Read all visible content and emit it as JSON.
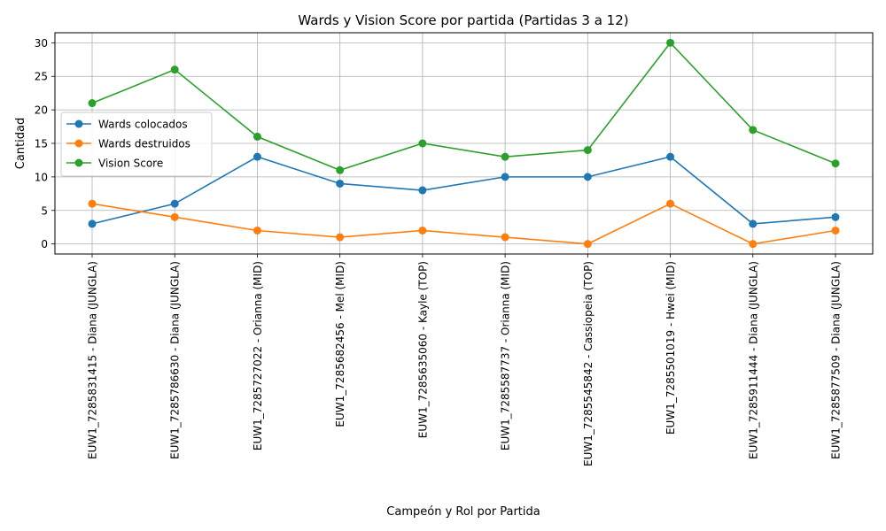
{
  "chart_data": {
    "type": "line",
    "title": "Wards y Vision Score por partida (Partidas 3 a 12)",
    "xlabel": "Campeón y Rol por Partida",
    "ylabel": "Cantidad",
    "categories": [
      "EUW1_7285831415 - Diana (JUNGLA)",
      "EUW1_7285786630 - Diana (JUNGLA)",
      "EUW1_7285727022 - Orianna (MID)",
      "EUW1_7285682456 - Mel (MID)",
      "EUW1_7285635060 - Kayle (TOP)",
      "EUW1_7285587737 - Orianna (MID)",
      "EUW1_7285545842 - Cassiopeia (TOP)",
      "EUW1_7285501019 - Hwei (MID)",
      "EUW1_7285911444 - Diana (JUNGLA)",
      "EUW1_7285877509 - Diana (JUNGLA)"
    ],
    "series": [
      {
        "name": "Wards colocados",
        "color": "#1f77b4",
        "values": [
          3,
          6,
          13,
          9,
          8,
          10,
          10,
          13,
          3,
          4
        ]
      },
      {
        "name": "Wards destruidos",
        "color": "#ff7f0e",
        "values": [
          6,
          4,
          2,
          1,
          2,
          1,
          0,
          6,
          0,
          2
        ]
      },
      {
        "name": "Vision Score",
        "color": "#2ca02c",
        "values": [
          21,
          26,
          16,
          11,
          15,
          13,
          14,
          30,
          17,
          12
        ]
      }
    ],
    "ylim": [
      -1.5,
      31.5
    ],
    "yticks": [
      0,
      5,
      10,
      15,
      20,
      25,
      30
    ],
    "grid": true,
    "legend_position": "center-left"
  }
}
